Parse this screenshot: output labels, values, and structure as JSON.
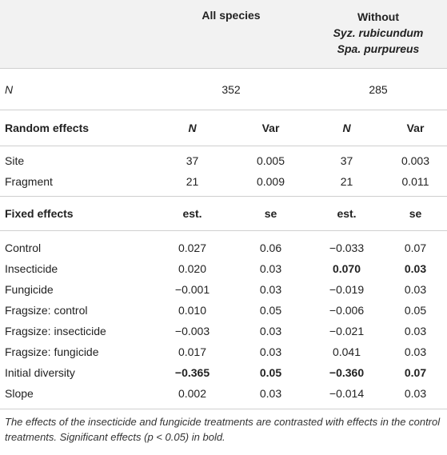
{
  "header": {
    "all_species": "All species",
    "without": "Without",
    "without_line2": "Syz. rubicundum",
    "without_line3": "Spa. purpureus"
  },
  "n_row": {
    "label": "N",
    "all": "352",
    "without": "285"
  },
  "random_header": {
    "label": "Random effects",
    "c1": "N",
    "c2": "Var",
    "c3": "N",
    "c4": "Var"
  },
  "random_rows": [
    {
      "label": "Site",
      "c1": "37",
      "c2": "0.005",
      "c3": "37",
      "c4": "0.003"
    },
    {
      "label": "Fragment",
      "c1": "21",
      "c2": "0.009",
      "c3": "21",
      "c4": "0.011"
    }
  ],
  "fixed_header": {
    "label": "Fixed effects",
    "c1": "est.",
    "c2": "se",
    "c3": "est.",
    "c4": "se"
  },
  "fixed_rows": [
    {
      "label": "Control",
      "c1": "0.027",
      "c2": "0.06",
      "c3": "−0.033",
      "c4": "0.07"
    },
    {
      "label": "Insecticide",
      "c1": "0.020",
      "c2": "0.03",
      "c3": "0.070",
      "c4": "0.03"
    },
    {
      "label": "Fungicide",
      "c1": "−0.001",
      "c2": "0.03",
      "c3": "−0.019",
      "c4": "0.03"
    },
    {
      "label": "Fragsize: control",
      "c1": "0.010",
      "c2": "0.05",
      "c3": "−0.006",
      "c4": "0.05"
    },
    {
      "label": "Fragsize: insecticide",
      "c1": "−0.003",
      "c2": "0.03",
      "c3": "−0.021",
      "c4": "0.03"
    },
    {
      "label": "Fragsize: fungicide",
      "c1": "0.017",
      "c2": "0.03",
      "c3": "0.041",
      "c4": "0.03"
    },
    {
      "label": "Initial diversity",
      "c1": "−0.365",
      "c2": "0.05",
      "c3": "−0.360",
      "c4": "0.07"
    },
    {
      "label": "Slope",
      "c1": "0.002",
      "c2": "0.03",
      "c3": "−0.014",
      "c4": "0.03"
    }
  ],
  "footnote": "The effects of the insecticide and fungicide treatments are contrasted with effects in the control treatments. Significant effects (p < 0.05) in bold."
}
